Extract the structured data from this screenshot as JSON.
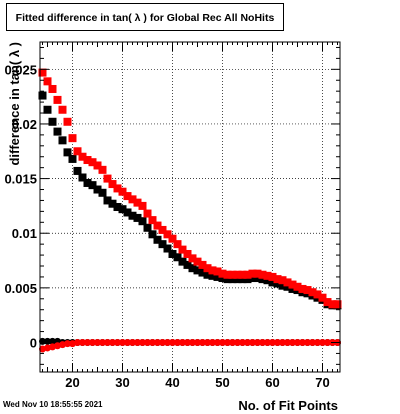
{
  "title": "Fitted difference in tan( λ ) for Global Rec All NoHits",
  "timestamp": "Wed Nov 10 18:55:55 2021",
  "colors": {
    "series_black": "#000000",
    "series_red": "#ff0000",
    "grid": "#000000"
  },
  "chart_data": {
    "type": "scatter",
    "title": "Fitted difference in tan( λ ) for Global Rec All NoHits",
    "xlabel": "No. of Fit Points",
    "ylabel": "difference in tan( λ )",
    "xlim": [
      13.5,
      73.5
    ],
    "ylim": [
      -0.0027,
      0.0275
    ],
    "x_ticks": [
      20,
      30,
      40,
      50,
      60,
      70
    ],
    "x_tick_labels": [
      "20",
      "30",
      "40",
      "50",
      "60",
      "70"
    ],
    "y_ticks": [
      0,
      0.005,
      0.01,
      0.015,
      0.02,
      0.025
    ],
    "y_tick_labels": [
      "0",
      "0.005",
      "0.01",
      "0.015",
      "0.02",
      "0.025"
    ],
    "grid": true,
    "series": [
      {
        "marker": "square",
        "color": "#000000",
        "x": [
          14,
          15,
          16,
          17,
          18,
          19,
          20,
          21,
          22,
          23,
          24,
          25,
          26,
          27,
          28,
          29,
          30,
          31,
          32,
          33,
          34,
          35,
          36,
          37,
          38,
          39,
          40,
          41,
          42,
          43,
          44,
          45,
          46,
          47,
          48,
          49,
          50,
          51,
          52,
          53,
          54,
          55,
          56,
          57,
          58,
          59,
          60,
          61,
          62,
          63,
          64,
          65,
          66,
          67,
          68,
          69,
          70,
          71,
          72,
          73
        ],
        "y": [
          0.0226,
          0.0213,
          0.0202,
          0.0193,
          0.0185,
          0.0174,
          0.0168,
          0.0157,
          0.0151,
          0.0146,
          0.0144,
          0.014,
          0.0137,
          0.013,
          0.0127,
          0.0124,
          0.0122,
          0.0119,
          0.0116,
          0.0114,
          0.0111,
          0.0105,
          0.0099,
          0.0094,
          0.009,
          0.0086,
          0.0081,
          0.0078,
          0.0074,
          0.0071,
          0.0068,
          0.0066,
          0.0064,
          0.0062,
          0.0061,
          0.006,
          0.0059,
          0.0058,
          0.0058,
          0.0058,
          0.0058,
          0.0058,
          0.0059,
          0.0059,
          0.0058,
          0.0057,
          0.0055,
          0.0054,
          0.0052,
          0.0051,
          0.0049,
          0.0048,
          0.0046,
          0.0045,
          0.0043,
          0.0041,
          0.0039,
          0.0035,
          0.0034,
          0.0034
        ]
      },
      {
        "marker": "square",
        "color": "#ff0000",
        "x": [
          14,
          15,
          16,
          17,
          18,
          19,
          20,
          21,
          22,
          23,
          24,
          25,
          26,
          27,
          28,
          29,
          30,
          31,
          32,
          33,
          34,
          35,
          36,
          37,
          38,
          39,
          40,
          41,
          42,
          43,
          44,
          45,
          46,
          47,
          48,
          49,
          50,
          51,
          52,
          53,
          54,
          55,
          56,
          57,
          58,
          59,
          60,
          61,
          62,
          63,
          64,
          65,
          66,
          67,
          68,
          69,
          70,
          71,
          72,
          73
        ],
        "y": [
          0.0247,
          0.0239,
          0.0232,
          0.0222,
          0.0213,
          0.0202,
          0.0187,
          0.0175,
          0.017,
          0.0167,
          0.0165,
          0.0162,
          0.0158,
          0.015,
          0.0145,
          0.0141,
          0.0138,
          0.0134,
          0.0131,
          0.0128,
          0.0125,
          0.0118,
          0.0112,
          0.0107,
          0.0103,
          0.0099,
          0.0095,
          0.009,
          0.0085,
          0.0081,
          0.0077,
          0.0074,
          0.0071,
          0.0068,
          0.0066,
          0.0065,
          0.0063,
          0.0062,
          0.0062,
          0.0062,
          0.0062,
          0.0062,
          0.0063,
          0.0063,
          0.0062,
          0.0061,
          0.006,
          0.0058,
          0.0057,
          0.0055,
          0.0053,
          0.0051,
          0.0049,
          0.0048,
          0.0046,
          0.0044,
          0.0041,
          0.0037,
          0.0035,
          0.0035
        ]
      },
      {
        "marker": "circle",
        "color": "#000000",
        "x": [
          14,
          15,
          16,
          17,
          18,
          19,
          20,
          21,
          22,
          23,
          24,
          25,
          26,
          27,
          28,
          29,
          30,
          31,
          32,
          33,
          34,
          35,
          36,
          37,
          38,
          39,
          40,
          41,
          42,
          43,
          44,
          45,
          46,
          47,
          48,
          49,
          50,
          51,
          52,
          53,
          54,
          55,
          56,
          57,
          58,
          59,
          60,
          61,
          62,
          63,
          64,
          65,
          66,
          67,
          68,
          69,
          70,
          71,
          72,
          73
        ],
        "y": [
          0.0001,
          0.0001,
          0.0001,
          0.0001,
          0.0,
          0.0,
          0.0,
          0.0,
          0.0,
          0.0,
          0.0,
          0.0,
          0.0,
          0.0,
          0.0,
          0.0,
          0.0,
          0.0,
          0.0,
          0.0,
          0.0,
          0.0,
          0.0,
          0.0,
          0.0,
          0.0,
          0.0,
          0.0,
          0.0,
          0.0,
          0.0,
          0.0,
          0.0,
          0.0,
          0.0,
          0.0,
          0.0,
          0.0,
          0.0,
          0.0,
          0.0,
          0.0,
          0.0,
          0.0,
          0.0,
          0.0,
          0.0,
          0.0,
          0.0,
          0.0,
          0.0,
          0.0,
          0.0,
          0.0,
          0.0,
          0.0,
          0.0,
          0.0,
          0.0,
          0.0
        ]
      },
      {
        "marker": "circle",
        "color": "#ff0000",
        "x": [
          14,
          15,
          16,
          17,
          18,
          19,
          20,
          21,
          22,
          23,
          24,
          25,
          26,
          27,
          28,
          29,
          30,
          31,
          32,
          33,
          34,
          35,
          36,
          37,
          38,
          39,
          40,
          41,
          42,
          43,
          44,
          45,
          46,
          47,
          48,
          49,
          50,
          51,
          52,
          53,
          54,
          55,
          56,
          57,
          58,
          59,
          60,
          61,
          62,
          63,
          64,
          65,
          66,
          67,
          68,
          69,
          70,
          71,
          72,
          73
        ],
        "y": [
          -0.0006,
          -0.0005,
          -0.0004,
          -0.0003,
          -0.0002,
          -0.0001,
          -0.0001,
          0.0,
          0.0,
          0.0,
          0.0,
          0.0,
          0.0,
          0.0,
          0.0,
          0.0,
          0.0,
          0.0,
          0.0,
          0.0,
          0.0,
          0.0,
          0.0,
          0.0,
          0.0,
          0.0,
          0.0,
          0.0,
          0.0,
          0.0,
          0.0,
          0.0,
          0.0,
          0.0,
          0.0,
          0.0,
          0.0,
          0.0,
          0.0,
          0.0,
          0.0,
          0.0,
          0.0,
          0.0,
          0.0,
          0.0,
          0.0,
          0.0,
          0.0,
          0.0,
          0.0,
          0.0,
          0.0,
          0.0,
          0.0,
          0.0,
          0.0,
          0.0,
          0.0,
          0.0
        ]
      }
    ]
  }
}
